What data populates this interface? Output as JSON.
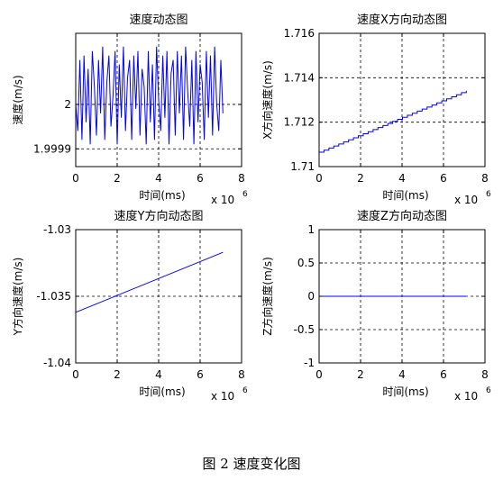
{
  "caption": "图 2  速度变化图",
  "chart_data": [
    {
      "type": "line",
      "title": "速度动态图",
      "xlabel": "时间(ms)",
      "ylabel": "速度(m/s)",
      "x_multiplier_label": "x 10",
      "x_multiplier_exp": "6",
      "xlim": [
        0,
        8
      ],
      "ylim": [
        1.99986,
        2.00016
      ],
      "xticks": [
        0,
        2,
        4,
        6,
        8
      ],
      "xtick_labels": [
        "0",
        "2",
        "4",
        "6",
        "8"
      ],
      "yticks": [
        1.9999,
        2
      ],
      "ytick_labels": [
        "1.9999",
        "2"
      ],
      "grid": true,
      "color": "#0000ff",
      "series": [
        {
          "x_range": [
            0,
            7.1
          ],
          "values": [
            2.0,
            1.99994,
            2.0001,
            1.99992,
            2.00011,
            1.99996,
            2.00008,
            1.99991,
            2.00012,
            2.00004,
            1.99993,
            2.0001,
            1.99998,
            2.00013,
            1.99992,
            2.00005,
            2.00011,
            1.99995,
            2.00002,
            2.00012,
            1.99991,
            2.00009,
            1.99997,
            2.00013,
            1.99994,
            2.00006,
            2.0001,
            1.99992,
            2.00011,
            1.99999,
            2.00012,
            1.99993,
            2.00008,
            2.00004,
            1.99991,
            2.00012,
            1.99996,
            2.00009,
            1.99992,
            2.00013,
            2.00001,
            1.99994,
            2.00011,
            1.99997,
            2.00012,
            1.99991,
            2.00007,
            2.0001,
            1.99993,
            2.00012,
            1.99998,
            2.00011,
            1.99992,
            2.00013,
            2.00003,
            1.99995,
            2.0001,
            1.99991,
            2.00012,
            1.99996,
            2.00009,
            2.00005,
            1.99992,
            2.00012,
            1.99997,
            2.00011,
            1.99993,
            2.00013,
            2.0,
            1.99994,
            2.0001,
            1.99998
          ]
        }
      ]
    },
    {
      "type": "line",
      "title": "速度X方向动态图",
      "xlabel": "时间(ms)",
      "ylabel": "X方向速度(m/s)",
      "x_multiplier_label": "x 10",
      "x_multiplier_exp": "6",
      "xlim": [
        0,
        8
      ],
      "ylim": [
        1.71,
        1.716
      ],
      "xticks": [
        0,
        2,
        4,
        6,
        8
      ],
      "xtick_labels": [
        "0",
        "2",
        "4",
        "6",
        "8"
      ],
      "yticks": [
        1.71,
        1.712,
        1.714,
        1.716
      ],
      "ytick_labels": [
        "1.71",
        "1.712",
        "1.714",
        "1.716"
      ],
      "grid": true,
      "color": "#0000ff",
      "staircase": true,
      "series": [
        {
          "x": [
            0,
            7.1
          ],
          "y": [
            1.71065,
            1.71342
          ]
        }
      ]
    },
    {
      "type": "line",
      "title": "速度Y方向动态图",
      "xlabel": "时间(ms)",
      "ylabel": "Y方向速度(m/s)",
      "x_multiplier_label": "x 10",
      "x_multiplier_exp": "6",
      "xlim": [
        0,
        8
      ],
      "ylim": [
        -1.04,
        -1.03
      ],
      "xticks": [
        0,
        2,
        4,
        6,
        8
      ],
      "xtick_labels": [
        "0",
        "2",
        "4",
        "6",
        "8"
      ],
      "yticks": [
        -1.04,
        -1.035,
        -1.03
      ],
      "ytick_labels": [
        "-1.04",
        "-1.035",
        "-1.03"
      ],
      "grid": true,
      "color": "#0000ff",
      "series": [
        {
          "x": [
            0,
            7.1
          ],
          "y": [
            -1.0362,
            -1.0317
          ]
        }
      ]
    },
    {
      "type": "line",
      "title": "速度Z方向动态图",
      "xlabel": "时间(ms)",
      "ylabel": "Z方向速度(m/s)",
      "x_multiplier_label": "x 10",
      "x_multiplier_exp": "6",
      "xlim": [
        0,
        8
      ],
      "ylim": [
        -1,
        1
      ],
      "xticks": [
        0,
        2,
        4,
        6,
        8
      ],
      "xtick_labels": [
        "0",
        "2",
        "4",
        "6",
        "8"
      ],
      "yticks": [
        -1,
        -0.5,
        0,
        0.5,
        1
      ],
      "ytick_labels": [
        "-1",
        "-0.5",
        "0",
        "0.5",
        "1"
      ],
      "grid": true,
      "color": "#0000ff",
      "series": [
        {
          "x": [
            0,
            7.1
          ],
          "y": [
            0,
            0
          ]
        }
      ]
    }
  ]
}
